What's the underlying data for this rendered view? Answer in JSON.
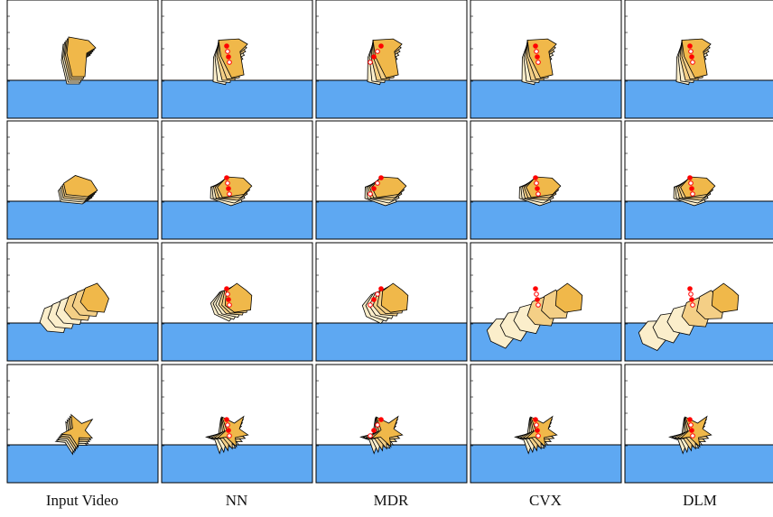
{
  "column_labels": [
    "Input Video",
    "NN",
    "MDR",
    "CVX",
    "DLM"
  ]
}
